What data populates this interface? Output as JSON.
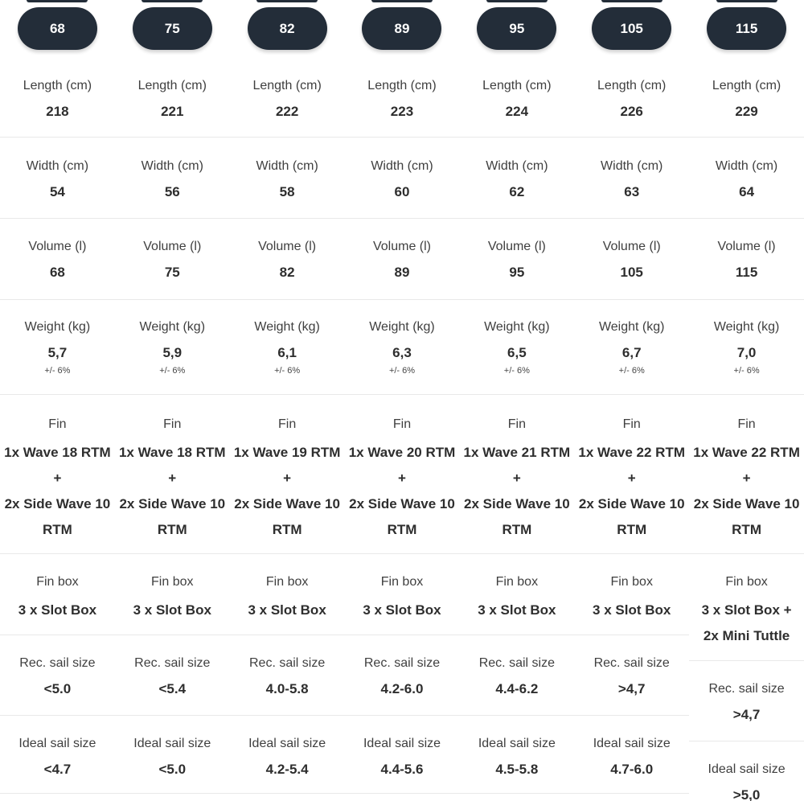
{
  "theme": {
    "badge_background": "#232d39",
    "badge_text_color": "#ffffff",
    "divider_color": "#e9e9e9",
    "label_color": "#3f3f3f",
    "value_color": "#2e2e2e",
    "page_background": "#ffffff"
  },
  "spec_table": {
    "columns": [
      {
        "badge": "68",
        "sections": [
          {
            "key": "length",
            "label": "Length (cm)",
            "value": "218"
          },
          {
            "key": "width",
            "label": "Width (cm)",
            "value": "54"
          },
          {
            "key": "volume",
            "label": "Volume (l)",
            "value": "68"
          },
          {
            "key": "weight",
            "label": "Weight (kg)",
            "value": "5,7",
            "note": "+/- 6%"
          },
          {
            "key": "fin",
            "label": "Fin",
            "value_lines": [
              "1x Wave 18 RTM",
              "+",
              "2x Side Wave 10",
              "RTM"
            ]
          },
          {
            "key": "finbox",
            "label": "Fin box",
            "value": "3 x Slot Box"
          },
          {
            "key": "rec_sail",
            "label": "Rec. sail size",
            "value": "<5.0"
          },
          {
            "key": "ideal_sail",
            "label": "Ideal sail size",
            "value": "<4.7"
          }
        ]
      },
      {
        "badge": "75",
        "sections": [
          {
            "key": "length",
            "label": "Length (cm)",
            "value": "221"
          },
          {
            "key": "width",
            "label": "Width (cm)",
            "value": "56"
          },
          {
            "key": "volume",
            "label": "Volume (l)",
            "value": "75"
          },
          {
            "key": "weight",
            "label": "Weight (kg)",
            "value": "5,9",
            "note": "+/- 6%"
          },
          {
            "key": "fin",
            "label": "Fin",
            "value_lines": [
              "1x Wave 18 RTM",
              "+",
              "2x Side Wave 10",
              "RTM"
            ]
          },
          {
            "key": "finbox",
            "label": "Fin box",
            "value": "3 x Slot Box"
          },
          {
            "key": "rec_sail",
            "label": "Rec. sail size",
            "value": "<5.4"
          },
          {
            "key": "ideal_sail",
            "label": "Ideal sail size",
            "value": "<5.0"
          }
        ]
      },
      {
        "badge": "82",
        "sections": [
          {
            "key": "length",
            "label": "Length (cm)",
            "value": "222"
          },
          {
            "key": "width",
            "label": "Width (cm)",
            "value": "58"
          },
          {
            "key": "volume",
            "label": "Volume (l)",
            "value": "82"
          },
          {
            "key": "weight",
            "label": "Weight (kg)",
            "value": "6,1",
            "note": "+/- 6%"
          },
          {
            "key": "fin",
            "label": "Fin",
            "value_lines": [
              "1x Wave 19 RTM",
              "+",
              "2x Side Wave 10",
              "RTM"
            ]
          },
          {
            "key": "finbox",
            "label": "Fin box",
            "value": "3 x Slot Box"
          },
          {
            "key": "rec_sail",
            "label": "Rec. sail size",
            "value": "4.0-5.8"
          },
          {
            "key": "ideal_sail",
            "label": "Ideal sail size",
            "value": "4.2-5.4"
          }
        ]
      },
      {
        "badge": "89",
        "sections": [
          {
            "key": "length",
            "label": "Length (cm)",
            "value": "223"
          },
          {
            "key": "width",
            "label": "Width (cm)",
            "value": "60"
          },
          {
            "key": "volume",
            "label": "Volume (l)",
            "value": "89"
          },
          {
            "key": "weight",
            "label": "Weight (kg)",
            "value": "6,3",
            "note": "+/- 6%"
          },
          {
            "key": "fin",
            "label": "Fin",
            "value_lines": [
              "1x Wave 20 RTM",
              "+",
              "2x Side Wave 10",
              "RTM"
            ]
          },
          {
            "key": "finbox",
            "label": "Fin box",
            "value": "3 x Slot Box"
          },
          {
            "key": "rec_sail",
            "label": "Rec. sail size",
            "value": "4.2-6.0"
          },
          {
            "key": "ideal_sail",
            "label": "Ideal sail size",
            "value": "4.4-5.6"
          }
        ]
      },
      {
        "badge": "95",
        "sections": [
          {
            "key": "length",
            "label": "Length (cm)",
            "value": "224"
          },
          {
            "key": "width",
            "label": "Width (cm)",
            "value": "62"
          },
          {
            "key": "volume",
            "label": "Volume (l)",
            "value": "95"
          },
          {
            "key": "weight",
            "label": "Weight (kg)",
            "value": "6,5",
            "note": "+/- 6%"
          },
          {
            "key": "fin",
            "label": "Fin",
            "value_lines": [
              "1x Wave 21 RTM",
              "+",
              "2x Side Wave 10",
              "RTM"
            ]
          },
          {
            "key": "finbox",
            "label": "Fin box",
            "value": "3 x Slot Box"
          },
          {
            "key": "rec_sail",
            "label": "Rec. sail size",
            "value": "4.4-6.2"
          },
          {
            "key": "ideal_sail",
            "label": "Ideal sail size",
            "value": "4.5-5.8"
          }
        ]
      },
      {
        "badge": "105",
        "sections": [
          {
            "key": "length",
            "label": "Length (cm)",
            "value": "226"
          },
          {
            "key": "width",
            "label": "Width (cm)",
            "value": "63"
          },
          {
            "key": "volume",
            "label": "Volume (l)",
            "value": "105"
          },
          {
            "key": "weight",
            "label": "Weight (kg)",
            "value": "6,7",
            "note": "+/- 6%"
          },
          {
            "key": "fin",
            "label": "Fin",
            "value_lines": [
              "1x Wave 22 RTM",
              "+",
              "2x Side Wave 10",
              "RTM"
            ]
          },
          {
            "key": "finbox",
            "label": "Fin box",
            "value": "3 x Slot Box"
          },
          {
            "key": "rec_sail",
            "label": "Rec. sail size",
            "value": ">4,7"
          },
          {
            "key": "ideal_sail",
            "label": "Ideal sail size",
            "value": "4.7-6.0"
          }
        ]
      },
      {
        "badge": "115",
        "sections": [
          {
            "key": "length",
            "label": "Length (cm)",
            "value": "229"
          },
          {
            "key": "width",
            "label": "Width (cm)",
            "value": "64"
          },
          {
            "key": "volume",
            "label": "Volume (l)",
            "value": "115"
          },
          {
            "key": "weight",
            "label": "Weight (kg)",
            "value": "7,0",
            "note": "+/- 6%"
          },
          {
            "key": "fin",
            "label": "Fin",
            "value_lines": [
              "1x Wave 22 RTM",
              "+",
              "2x Side Wave 10",
              "RTM"
            ]
          },
          {
            "key": "finbox",
            "label": "Fin box",
            "value_lines": [
              "3 x Slot Box +",
              "2x Mini Tuttle"
            ]
          },
          {
            "key": "rec_sail",
            "label": "Rec. sail size",
            "value": ">4,7"
          },
          {
            "key": "ideal_sail",
            "label": "Ideal sail size",
            "value": ">5,0"
          }
        ]
      }
    ]
  }
}
